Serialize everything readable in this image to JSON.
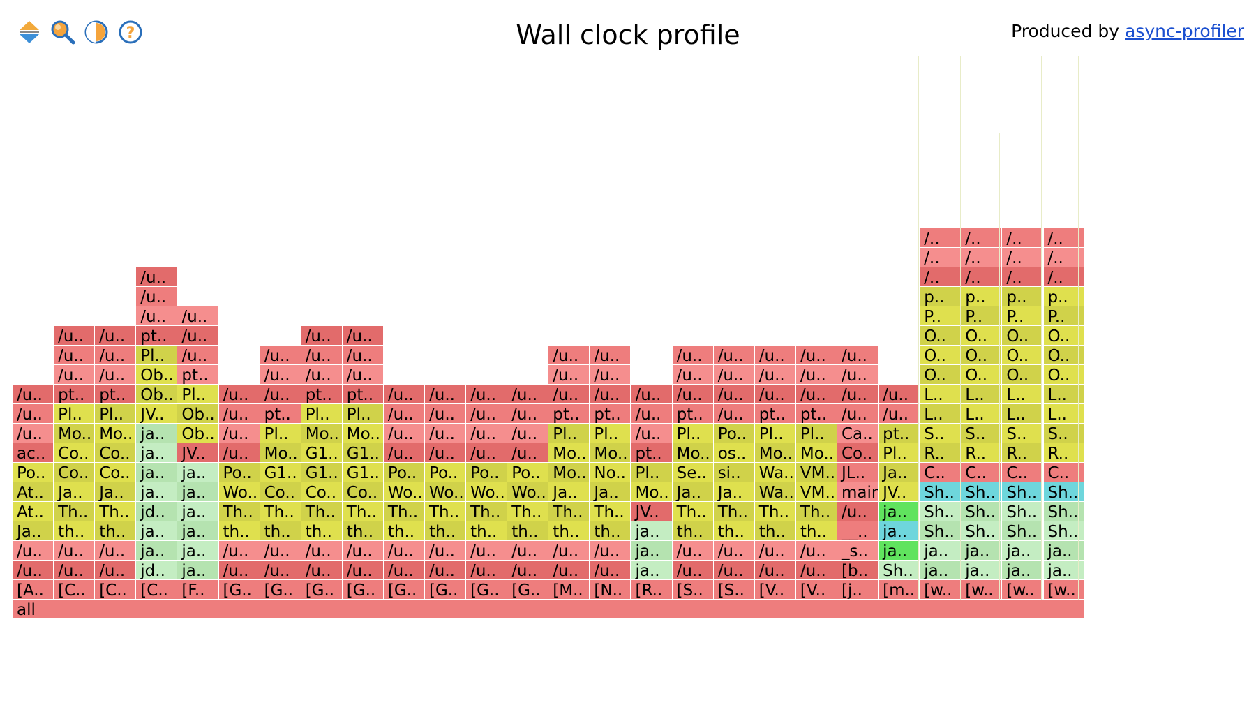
{
  "header": {
    "title": "Wall clock profile",
    "producer_prefix": "Produced by",
    "producer_link": "async-profiler"
  },
  "toolbar": {
    "buttons": [
      {
        "name": "reverse-icon",
        "tooltip": "Reverse"
      },
      {
        "name": "search-icon",
        "tooltip": "Search"
      },
      {
        "name": "invert-icon",
        "tooltip": "Invert"
      },
      {
        "name": "help-icon",
        "tooltip": "Help"
      }
    ]
  },
  "colors": {
    "red": "#ee7d7d",
    "red_dark": "#e26b6b",
    "red_pink": "#f58e8e",
    "yellow": "#dfe04e",
    "yellow_dark": "#d0d24a",
    "green_light": "#c4edc2",
    "green_mid": "#b5e3b0",
    "green_bright": "#60e35e",
    "aqua": "#6ed6dc"
  },
  "flame": {
    "root": "all",
    "columns": [
      {
        "frames": [
          "[A..",
          "/u..",
          "/u..",
          "Ja..",
          "At..",
          "At..",
          "Po..",
          "ac..",
          "/u..",
          "/u..",
          "/u.."
        ],
        "colors": [
          "r",
          "r",
          "r",
          "y",
          "y",
          "y",
          "y",
          "r",
          "r",
          "r",
          "r"
        ]
      },
      {
        "frames": [
          "[C..",
          "/u..",
          "/u..",
          "th..",
          "Th..",
          "Ja..",
          "Co..",
          "Co..",
          "Mo..",
          "Pl..",
          "pt..",
          "/u..",
          "/u..",
          "/u.."
        ],
        "colors": [
          "r",
          "r",
          "r",
          "y",
          "y",
          "y",
          "y",
          "y",
          "y",
          "y",
          "r",
          "r",
          "r",
          "r"
        ]
      },
      {
        "frames": [
          "[C..",
          "/u..",
          "/u..",
          "th..",
          "Th..",
          "Ja..",
          "Co..",
          "Co..",
          "Mo..",
          "Pl..",
          "pt..",
          "/u..",
          "/u..",
          "/u.."
        ],
        "colors": [
          "r",
          "r",
          "r",
          "y",
          "y",
          "y",
          "y",
          "y",
          "y",
          "y",
          "r",
          "r",
          "r",
          "r"
        ]
      },
      {
        "frames": [
          "[C..",
          "jd..",
          "ja..",
          "ja..",
          "jd..",
          "ja..",
          "ja..",
          "ja..",
          "ja..",
          "JV..",
          "Ob..",
          "Ob..",
          "Pl..",
          "pt..",
          "/u..",
          "/u..",
          "/u.."
        ],
        "colors": [
          "r",
          "g",
          "g",
          "g",
          "g",
          "g",
          "g",
          "g",
          "g",
          "y",
          "y",
          "y",
          "y",
          "r",
          "r",
          "r",
          "r"
        ]
      },
      {
        "frames": [
          "[F..",
          "ja..",
          "ja..",
          "ja..",
          "ja..",
          "ja..",
          "ja..",
          "JV..",
          "Ob..",
          "Ob..",
          "Pl..",
          "pt..",
          "/u..",
          "/u..",
          "/u.."
        ],
        "colors": [
          "r",
          "g",
          "g",
          "g",
          "g",
          "g",
          "g",
          "r",
          "y",
          "y",
          "y",
          "r",
          "r",
          "r",
          "r"
        ]
      },
      {
        "frames": [
          "[G..",
          "/u..",
          "/u..",
          "th..",
          "Th..",
          "Wo..",
          "Po..",
          "/u..",
          "/u..",
          "/u..",
          "/u.."
        ],
        "colors": [
          "r",
          "r",
          "r",
          "y",
          "y",
          "y",
          "y",
          "r",
          "r",
          "r",
          "r"
        ]
      },
      {
        "frames": [
          "[G..",
          "/u..",
          "/u..",
          "th..",
          "Th..",
          "Co..",
          "G1..",
          "Mo..",
          "Pl..",
          "pt..",
          "/u..",
          "/u..",
          "/u.."
        ],
        "colors": [
          "r",
          "r",
          "r",
          "y",
          "y",
          "y",
          "y",
          "y",
          "y",
          "r",
          "r",
          "r",
          "r"
        ]
      },
      {
        "frames": [
          "[G..",
          "/u..",
          "/u..",
          "th..",
          "Th..",
          "Co..",
          "G1..",
          "G1..",
          "Mo..",
          "Pl..",
          "pt..",
          "/u..",
          "/u..",
          "/u.."
        ],
        "colors": [
          "r",
          "r",
          "r",
          "y",
          "y",
          "y",
          "y",
          "y",
          "y",
          "y",
          "r",
          "r",
          "r",
          "r"
        ]
      },
      {
        "frames": [
          "[G..",
          "/u..",
          "/u..",
          "th..",
          "Th..",
          "Co..",
          "G1..",
          "G1..",
          "Mo..",
          "Pl..",
          "pt..",
          "/u..",
          "/u..",
          "/u.."
        ],
        "colors": [
          "r",
          "r",
          "r",
          "y",
          "y",
          "y",
          "y",
          "y",
          "y",
          "y",
          "r",
          "r",
          "r",
          "r"
        ]
      },
      {
        "frames": [
          "[G..",
          "/u..",
          "/u..",
          "th..",
          "Th..",
          "Wo..",
          "Po..",
          "/u..",
          "/u..",
          "/u..",
          "/u.."
        ],
        "colors": [
          "r",
          "r",
          "r",
          "y",
          "y",
          "y",
          "y",
          "r",
          "r",
          "r",
          "r"
        ]
      },
      {
        "frames": [
          "[G..",
          "/u..",
          "/u..",
          "th..",
          "Th..",
          "Wo..",
          "Po..",
          "/u..",
          "/u..",
          "/u..",
          "/u.."
        ],
        "colors": [
          "r",
          "r",
          "r",
          "y",
          "y",
          "y",
          "y",
          "r",
          "r",
          "r",
          "r"
        ]
      },
      {
        "frames": [
          "[G..",
          "/u..",
          "/u..",
          "th..",
          "Th..",
          "Wo..",
          "Po..",
          "/u..",
          "/u..",
          "/u..",
          "/u.."
        ],
        "colors": [
          "r",
          "r",
          "r",
          "y",
          "y",
          "y",
          "y",
          "r",
          "r",
          "r",
          "r"
        ]
      },
      {
        "frames": [
          "[G..",
          "/u..",
          "/u..",
          "th..",
          "Th..",
          "Wo..",
          "Po..",
          "/u..",
          "/u..",
          "/u..",
          "/u.."
        ],
        "colors": [
          "r",
          "r",
          "r",
          "y",
          "y",
          "y",
          "y",
          "r",
          "r",
          "r",
          "r"
        ]
      },
      {
        "frames": [
          "[M..",
          "/u..",
          "/u..",
          "th..",
          "Th..",
          "Ja..",
          "Mo..",
          "Mo..",
          "Pl..",
          "pt..",
          "/u..",
          "/u..",
          "/u.."
        ],
        "colors": [
          "r",
          "r",
          "r",
          "y",
          "y",
          "y",
          "y",
          "y",
          "y",
          "r",
          "r",
          "r",
          "r"
        ]
      },
      {
        "frames": [
          "[N..",
          "/u..",
          "/u..",
          "th..",
          "Th..",
          "Ja..",
          "No..",
          "Mo..",
          "Pl..",
          "pt..",
          "/u..",
          "/u..",
          "/u.."
        ],
        "colors": [
          "r",
          "r",
          "r",
          "y",
          "y",
          "y",
          "y",
          "y",
          "y",
          "r",
          "r",
          "r",
          "r"
        ]
      },
      {
        "frames": [
          "[R..",
          "ja..",
          "ja..",
          "ja..",
          "JV..",
          "Mo..",
          "Pl..",
          "pt..",
          "/u..",
          "/u..",
          "/u.."
        ],
        "colors": [
          "r",
          "g",
          "g",
          "g",
          "r",
          "y",
          "y",
          "r",
          "r",
          "r",
          "r"
        ]
      },
      {
        "frames": [
          "[S..",
          "/u..",
          "/u..",
          "th..",
          "Th..",
          "Ja..",
          "Se..",
          "Mo..",
          "Pl..",
          "pt..",
          "/u..",
          "/u..",
          "/u.."
        ],
        "colors": [
          "r",
          "r",
          "r",
          "y",
          "y",
          "y",
          "y",
          "y",
          "y",
          "r",
          "r",
          "r",
          "r"
        ]
      },
      {
        "frames": [
          "[S..",
          "/u..",
          "/u..",
          "th..",
          "Th..",
          "Ja..",
          "si..",
          "os..",
          "Po..",
          "/u..",
          "/u..",
          "/u..",
          "/u.."
        ],
        "colors": [
          "r",
          "r",
          "r",
          "y",
          "y",
          "y",
          "y",
          "y",
          "y",
          "r",
          "r",
          "r",
          "r"
        ]
      },
      {
        "frames": [
          "[V..",
          "/u..",
          "/u..",
          "th..",
          "Th..",
          "Wa..",
          "Wa..",
          "Mo..",
          "Pl..",
          "pt..",
          "/u..",
          "/u..",
          "/u.."
        ],
        "colors": [
          "r",
          "r",
          "r",
          "y",
          "y",
          "y",
          "y",
          "y",
          "y",
          "r",
          "r",
          "r",
          "r"
        ]
      },
      {
        "frames": [
          "[V..",
          "/u..",
          "/u..",
          "th..",
          "Th..",
          "VM..",
          "VM..",
          "Mo..",
          "Pl..",
          "pt..",
          "/u..",
          "/u..",
          "/u.."
        ],
        "colors": [
          "r",
          "r",
          "r",
          "y",
          "y",
          "y",
          "y",
          "y",
          "y",
          "r",
          "r",
          "r",
          "r"
        ]
      },
      {
        "frames": [
          "[j..",
          "[b..",
          "_s..",
          "__..",
          "/u..",
          "main",
          "JL..",
          "Co..",
          "Ca..",
          "/u..",
          "/u..",
          "/u..",
          "/u.."
        ],
        "colors": [
          "r",
          "r",
          "r",
          "r",
          "r",
          "r",
          "r",
          "r",
          "r",
          "r",
          "r",
          "r",
          "r"
        ]
      },
      {
        "frames": [
          "[m..",
          "Sh..",
          "ja..",
          "ja..",
          "ja..",
          "JV..",
          "Ja..",
          "Pl..",
          "pt..",
          "/u..",
          "/u.."
        ],
        "colors": [
          "r",
          "g",
          "G",
          "A",
          "G",
          "y",
          "y",
          "y",
          "y",
          "r",
          "r"
        ]
      },
      {
        "frames": [
          "[w..",
          "ja..",
          "ja..",
          "Sh..",
          "Sh..",
          "Sh..",
          "C..",
          "R..",
          "S..",
          "L..",
          "L..",
          "O..",
          "O..",
          "O..",
          "P..",
          "p..",
          "/..",
          "/..",
          "/.."
        ],
        "colors": [
          "r",
          "g",
          "g",
          "g",
          "g",
          "A",
          "r",
          "y",
          "y",
          "y",
          "y",
          "y",
          "y",
          "y",
          "y",
          "y",
          "r",
          "r",
          "r"
        ]
      },
      {
        "frames": [
          "[w..",
          "ja..",
          "ja..",
          "Sh..",
          "Sh..",
          "Sh..",
          "C..",
          "R..",
          "S..",
          "L..",
          "L..",
          "O..",
          "O..",
          "O..",
          "P..",
          "p..",
          "/..",
          "/..",
          "/.."
        ],
        "colors": [
          "r",
          "g",
          "g",
          "g",
          "g",
          "A",
          "r",
          "y",
          "y",
          "y",
          "y",
          "y",
          "y",
          "y",
          "y",
          "y",
          "r",
          "r",
          "r"
        ]
      },
      {
        "frames": [
          "[w..",
          "ja..",
          "ja..",
          "Sh..",
          "Sh..",
          "Sh..",
          "C..",
          "R..",
          "S..",
          "L..",
          "L..",
          "O..",
          "O..",
          "O..",
          "P..",
          "p..",
          "/..",
          "/..",
          "/.."
        ],
        "colors": [
          "r",
          "g",
          "g",
          "g",
          "g",
          "A",
          "r",
          "y",
          "y",
          "y",
          "y",
          "y",
          "y",
          "y",
          "y",
          "y",
          "r",
          "r",
          "r"
        ]
      },
      {
        "frames": [
          "[w..",
          "ja..",
          "ja..",
          "Sh..",
          "Sh..",
          "Sh..",
          "C..",
          "R..",
          "S..",
          "L..",
          "L..",
          "O..",
          "O..",
          "O..",
          "P..",
          "p..",
          "/..",
          "/..",
          "/.."
        ],
        "colors": [
          "r",
          "g",
          "g",
          "g",
          "g",
          "A",
          "r",
          "y",
          "y",
          "y",
          "y",
          "y",
          "y",
          "y",
          "y",
          "y",
          "r",
          "r",
          "r"
        ]
      }
    ]
  }
}
